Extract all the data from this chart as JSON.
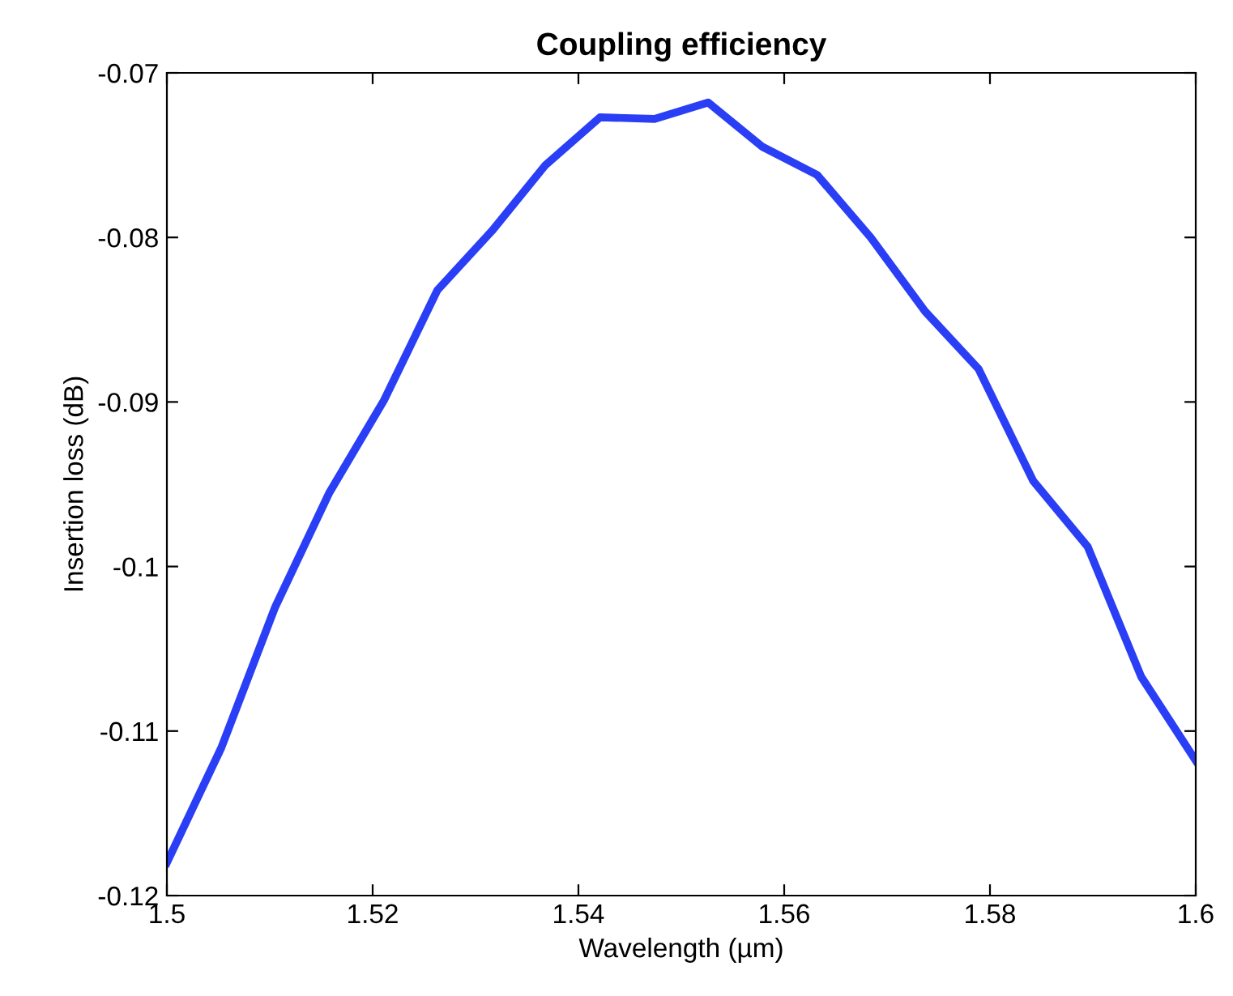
{
  "chart_data": {
    "type": "line",
    "title": "Coupling efficiency",
    "xlabel": "Wavelength (µm)",
    "ylabel": "Insertion loss (dB)",
    "x": [
      1.5,
      1.5053,
      1.5105,
      1.5158,
      1.5211,
      1.5263,
      1.5316,
      1.5368,
      1.5421,
      1.5474,
      1.5526,
      1.5579,
      1.5632,
      1.5684,
      1.5737,
      1.5789,
      1.5842,
      1.5895,
      1.5947,
      1.6
    ],
    "series": [
      {
        "color": "#2a3ff5",
        "values": [
          -0.118,
          -0.111,
          -0.1025,
          -0.0955,
          -0.0899,
          -0.0832,
          -0.0796,
          -0.0756,
          -0.0727,
          -0.0728,
          -0.0718,
          -0.0745,
          -0.0762,
          -0.08,
          -0.0845,
          -0.088,
          -0.0948,
          -0.0988,
          -0.1067,
          -0.1118
        ]
      }
    ],
    "xlim": [
      1.5,
      1.6
    ],
    "xticks": [
      1.5,
      1.52,
      1.54,
      1.56,
      1.58,
      1.6
    ],
    "ylim": [
      -0.12,
      -0.07
    ],
    "yticks": [
      -0.12,
      -0.11,
      -0.1,
      -0.09,
      -0.08,
      -0.07
    ],
    "grid": false,
    "legend": false,
    "marker": "none",
    "line_style": "solid"
  }
}
